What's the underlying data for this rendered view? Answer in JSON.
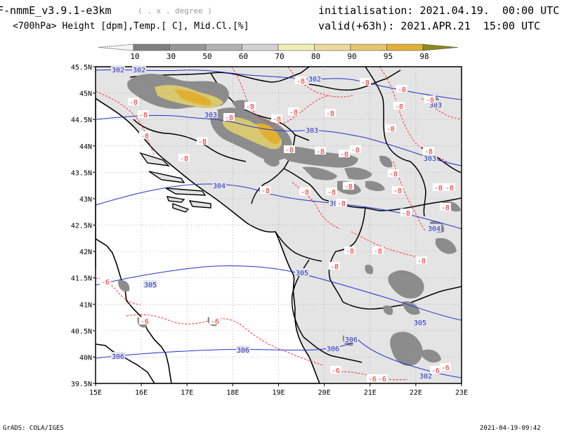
{
  "header": {
    "model": "F-nmmE_v3.9.1-e3km",
    "grid_note": "( . x . degree )",
    "variables": "<700hPa> Height [dpm],Temp.[ C], Mid.Cl.[%]",
    "initialisation": "initialisation: 2021.04.19.  00:00 UTC",
    "valid": "valid(+63h): 2021.APR.21  15:00 UTC"
  },
  "colorbar": {
    "labels": [
      "10",
      "30",
      "50",
      "60",
      "70",
      "80",
      "90",
      "95",
      "98"
    ],
    "colors": [
      "#f5f5f5",
      "#808080",
      "#969696",
      "#b2b2b2",
      "#d2d2d2",
      "#f0eeb4",
      "#ecd99c",
      "#e6c46c",
      "#e2b036",
      "#8a8a18"
    ]
  },
  "axes": {
    "lat_labels": [
      "45.5N",
      "45N",
      "44.5N",
      "44N",
      "43.5N",
      "43N",
      "42.5N",
      "42N",
      "41.5N",
      "41N",
      "40.5N",
      "40N",
      "39.5N"
    ],
    "lon_labels": [
      "15E",
      "16E",
      "17E",
      "18E",
      "19E",
      "20E",
      "21E",
      "22E",
      "23E"
    ]
  },
  "contours": {
    "height_labels": [
      "302",
      "302",
      "302",
      "303",
      "303",
      "303",
      "304",
      "304",
      "304",
      "305",
      "305",
      "305",
      "306",
      "306",
      "306",
      "306",
      "302",
      "303"
    ],
    "temp_labels": [
      "-8",
      "-6",
      "-6",
      "-6",
      "-6"
    ],
    "height_color": "#2233cc",
    "temp_color": "#ff2020"
  },
  "footer": {
    "left": "GrADS: COLA/IGES",
    "right": "2021-04-19-09:42"
  }
}
